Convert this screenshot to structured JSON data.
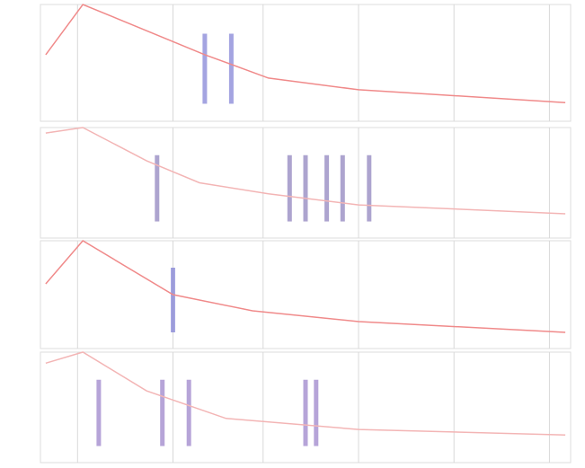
{
  "chart_data": [
    {
      "type": "line",
      "x": [
        1,
        8,
        31,
        43,
        60,
        99
      ],
      "values": [
        57,
        100,
        57,
        37,
        27,
        16
      ],
      "color": "#f08a8a",
      "xlim": [
        0,
        100
      ],
      "ylim": [
        0,
        100
      ],
      "xgrid": [
        7,
        25,
        42,
        60,
        78,
        96
      ],
      "events": [
        31,
        36
      ],
      "event_color": "#5a5ac8"
    },
    {
      "type": "line",
      "x": [
        1,
        8,
        20,
        30,
        43,
        60,
        99
      ],
      "values": [
        95,
        100,
        70,
        50,
        40,
        30,
        22
      ],
      "color": "#f3b5b5",
      "xlim": [
        0,
        100
      ],
      "ylim": [
        0,
        100
      ],
      "xgrid": [
        7,
        25,
        42,
        60,
        78,
        96
      ],
      "events": [
        22,
        47,
        50,
        54,
        57,
        62
      ],
      "event_color": "#6a5aa8"
    },
    {
      "type": "line",
      "x": [
        1,
        8,
        25,
        40,
        60,
        99
      ],
      "values": [
        60,
        100,
        50,
        35,
        25,
        15
      ],
      "color": "#f08a8a",
      "xlim": [
        0,
        100
      ],
      "ylim": [
        0,
        100
      ],
      "xgrid": [
        7,
        25,
        42,
        60,
        78,
        96
      ],
      "events": [
        25
      ],
      "event_color": "#5a5ac8"
    },
    {
      "type": "line",
      "x": [
        1,
        8,
        20,
        35,
        60,
        99
      ],
      "values": [
        90,
        100,
        65,
        40,
        30,
        25
      ],
      "color": "#f3b5b5",
      "xlim": [
        0,
        100
      ],
      "ylim": [
        0,
        100
      ],
      "xgrid": [
        7,
        25,
        42,
        60,
        78,
        96
      ],
      "events": [
        11,
        23,
        28,
        50,
        52
      ],
      "event_color": "#7a5ab8"
    }
  ]
}
